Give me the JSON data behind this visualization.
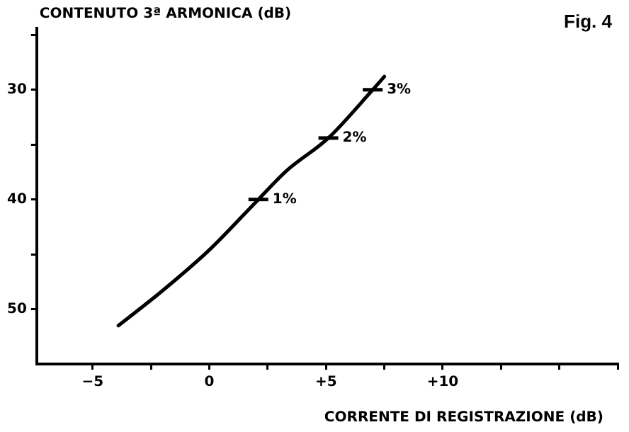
{
  "chart_data": {
    "type": "line",
    "ylabel": "CONTENUTO 3ª ARMONICA (dB)",
    "xlabel": "CORRENTE DI REGISTRAZIONE (dB)",
    "series": [
      {
        "color": "#000000",
        "x": [
          -3.9,
          -2,
          0,
          2.1,
          3.3,
          5.1,
          7,
          7.5
        ],
        "values": [
          51.5,
          48.3,
          44.6,
          40,
          37.4,
          34.4,
          30,
          28.8
        ]
      }
    ],
    "xlim": [
      -7.4,
      17.5
    ],
    "xticks": [
      {
        "value": -5,
        "label": "−5"
      },
      {
        "value": -2.5,
        "label": null
      },
      0,
      {
        "value": 2.5,
        "label": null
      },
      {
        "value": 5,
        "label": "+5"
      },
      {
        "value": 7.5,
        "label": null
      },
      {
        "value": 10,
        "label": "+10"
      },
      {
        "value": 12.5,
        "label": null
      },
      {
        "value": 15,
        "label": null
      },
      {
        "value": 17.5,
        "label": null
      }
    ],
    "ylim": [
      55,
      24.4
    ],
    "yticks": [
      {
        "value": 25,
        "label": null
      },
      30,
      {
        "value": 35,
        "label": null
      },
      40,
      {
        "value": 45,
        "label": null
      },
      50
    ],
    "grid": false,
    "legend": false,
    "marker": "none",
    "line_style": "solid",
    "annotations": [
      "Fig. 4",
      {
        "text": "1%",
        "x": 2.1,
        "y": 40
      },
      {
        "text": "2%",
        "x": 5.1,
        "y": 34.4
      },
      {
        "text": "3%",
        "x": 7,
        "y": 30
      }
    ]
  }
}
